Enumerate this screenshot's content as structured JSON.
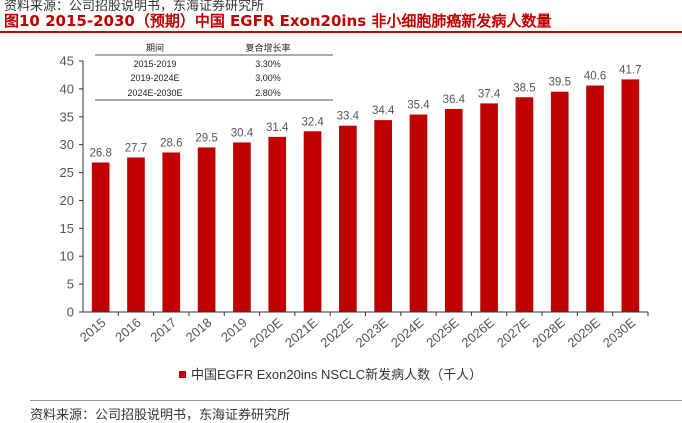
{
  "source_top": "资料来源：公司招股说明书，东海证券研究所",
  "title": "图10  2015-2030（预期）中国 EGFR Exon20ins 非小细胞肺癌新发病人数量",
  "source_bottom": "资料来源：公司招股说明书，东海证券研究所",
  "colors": {
    "bar": "#c00000",
    "title": "#c00000"
  },
  "cagr_table": {
    "headers": [
      "期间",
      "复合增长率"
    ],
    "rows": [
      [
        "2015-2019",
        "3.30%"
      ],
      [
        "2019-2024E",
        "3.00%"
      ],
      [
        "2024E-2030E",
        "2.80%"
      ]
    ]
  },
  "chart_data": {
    "type": "bar",
    "categories": [
      "2015",
      "2016",
      "2017",
      "2018",
      "2019",
      "2020E",
      "2021E",
      "2022E",
      "2023E",
      "2024E",
      "2025E",
      "2026E",
      "2027E",
      "2028E",
      "2029E",
      "2030E"
    ],
    "series": [
      {
        "name": "中国EGFR Exon20ins NSCLC新发病人数（千人）",
        "values": [
          26.8,
          27.7,
          28.6,
          29.5,
          30.4,
          31.4,
          32.4,
          33.4,
          34.4,
          35.4,
          36.4,
          37.4,
          38.5,
          39.5,
          40.6,
          41.7
        ]
      }
    ],
    "yticks": [
      0,
      5,
      10,
      15,
      20,
      25,
      30,
      35,
      40,
      45
    ],
    "ylim": [
      0,
      45
    ],
    "legend_position": "bottom",
    "grid": false
  }
}
